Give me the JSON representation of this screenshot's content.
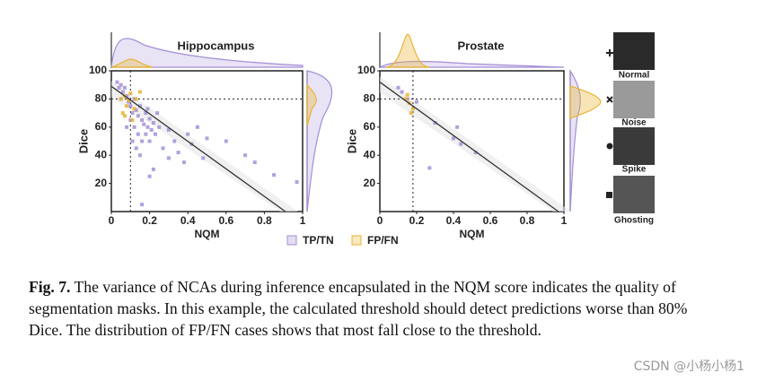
{
  "chart_data": [
    {
      "type": "scatter",
      "title": "Hippocampus",
      "x_label": "NQM",
      "y_label": "Dice",
      "xlim": [
        0,
        1
      ],
      "ylim": [
        0,
        100
      ],
      "xticks": [
        0,
        0.2,
        0.4,
        0.6,
        0.8,
        1
      ],
      "yticks": [
        20,
        40,
        60,
        80,
        100
      ],
      "reference_lines": {
        "x": 0.1,
        "y": 80
      },
      "fit_line": {
        "x": [
          0,
          0.91
        ],
        "y": [
          89,
          0
        ]
      },
      "series": [
        {
          "name": "TP/TN",
          "color": "#a58fd6",
          "x": [
            0.03,
            0.04,
            0.05,
            0.06,
            0.07,
            0.08,
            0.05,
            0.09,
            0.1,
            0.12,
            0.11,
            0.13,
            0.14,
            0.15,
            0.16,
            0.17,
            0.18,
            0.19,
            0.2,
            0.21,
            0.22,
            0.14,
            0.16,
            0.18,
            0.12,
            0.1,
            0.13,
            0.15,
            0.2,
            0.23,
            0.25,
            0.27,
            0.3,
            0.33,
            0.35,
            0.4,
            0.42,
            0.45,
            0.5,
            0.48,
            0.38,
            0.3,
            0.22,
            0.2,
            0.16,
            0.6,
            0.7,
            0.75,
            0.85,
            0.97,
            0.08,
            0.11,
            0.24,
            0.19
          ],
          "y": [
            92,
            88,
            90,
            85,
            88,
            82,
            80,
            78,
            75,
            80,
            70,
            72,
            68,
            75,
            65,
            62,
            70,
            60,
            66,
            58,
            63,
            55,
            50,
            55,
            60,
            65,
            45,
            40,
            50,
            55,
            60,
            45,
            58,
            50,
            42,
            55,
            48,
            60,
            52,
            38,
            35,
            38,
            30,
            25,
            5,
            50,
            40,
            35,
            26,
            21,
            60,
            50,
            70,
            73
          ]
        },
        {
          "name": "FP/FN",
          "color": "#e8b535",
          "x": [
            0.05,
            0.07,
            0.09,
            0.1,
            0.13,
            0.15,
            0.08,
            0.06,
            0.12,
            0.11,
            0.07
          ],
          "y": [
            80,
            82,
            79,
            84,
            80,
            85,
            75,
            70,
            73,
            65,
            68
          ]
        }
      ]
    },
    {
      "type": "scatter",
      "title": "Prostate",
      "x_label": "NQM",
      "y_label": "Dice",
      "xlim": [
        0,
        1
      ],
      "ylim": [
        0,
        100
      ],
      "xticks": [
        0,
        0.2,
        0.4,
        0.6,
        0.8,
        1
      ],
      "yticks": [
        20,
        40,
        60,
        80,
        100
      ],
      "reference_lines": {
        "x": 0.18,
        "y": 80
      },
      "fit_line": {
        "x": [
          0,
          0.97
        ],
        "y": [
          92,
          0
        ]
      },
      "series": [
        {
          "name": "TP/TN",
          "color": "#a58fd6",
          "x": [
            0.1,
            0.12,
            0.15,
            0.2,
            0.3,
            0.4,
            0.42,
            0.44,
            0.52,
            0.27
          ],
          "y": [
            88,
            85,
            80,
            78,
            63,
            52,
            60,
            48,
            42,
            31
          ]
        },
        {
          "name": "FP/FN",
          "color": "#e8b535",
          "x": [
            0.14,
            0.16,
            0.18,
            0.17,
            0.15
          ],
          "y": [
            80,
            77,
            73,
            70,
            83
          ]
        }
      ]
    }
  ],
  "artifacts": [
    "Normal",
    "Noise",
    "Spike",
    "Ghosting"
  ],
  "caption": {
    "label": "Fig. 7.",
    "text": "The variance of NCAs during inference encapsulated in the NQM score indicates the quality of segmentation masks. In this example, the calculated threshold should detect predictions worse than 80% Dice. The distribution of FP/FN cases shows that most fall close to the threshold."
  },
  "watermark": "CSDN @小杨小杨1"
}
